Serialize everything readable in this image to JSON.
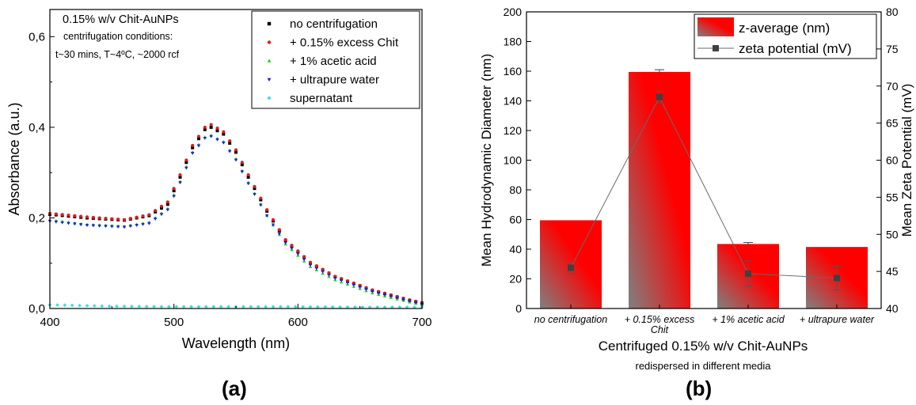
{
  "chart_data": [
    {
      "type": "scatter",
      "panel_label": "(a)",
      "xlabel": "Wavelength (nm)",
      "ylabel": "Absorbance (a.u.)",
      "xlim": [
        400,
        700
      ],
      "ylim": [
        0,
        0.66
      ],
      "x_ticks": [
        400,
        500,
        600,
        700
      ],
      "y_ticks": [
        0.0,
        0.2,
        0.4,
        0.6
      ],
      "y_tick_labels": [
        "0,0",
        "0,2",
        "0,4",
        "0,6"
      ],
      "grid": false,
      "legend_position": "top-right",
      "annotation": [
        "0.15% w/v Chit-AuNPs",
        "centrifugation conditions:",
        "t~30 mins, T~4ºC, ~2000 rcf"
      ],
      "series": [
        {
          "name": "no centrifugation",
          "color": "#000000",
          "marker": "square",
          "points": [
            [
              400,
              0.208
            ],
            [
              430,
              0.2
            ],
            [
              460,
              0.195
            ],
            [
              480,
              0.205
            ],
            [
              495,
              0.23
            ],
            [
              505,
              0.29
            ],
            [
              515,
              0.355
            ],
            [
              525,
              0.395
            ],
            [
              530,
              0.4
            ],
            [
              540,
              0.385
            ],
            [
              550,
              0.345
            ],
            [
              560,
              0.29
            ],
            [
              575,
              0.215
            ],
            [
              590,
              0.15
            ],
            [
              610,
              0.1
            ],
            [
              630,
              0.07
            ],
            [
              660,
              0.04
            ],
            [
              690,
              0.018
            ],
            [
              700,
              0.012
            ]
          ]
        },
        {
          "name": "+ 0.15% excess Chit",
          "color": "#e8191c",
          "marker": "circle",
          "points": [
            [
              400,
              0.21
            ],
            [
              430,
              0.202
            ],
            [
              460,
              0.196
            ],
            [
              480,
              0.207
            ],
            [
              495,
              0.235
            ],
            [
              505,
              0.295
            ],
            [
              515,
              0.36
            ],
            [
              525,
              0.4
            ],
            [
              530,
              0.406
            ],
            [
              540,
              0.39
            ],
            [
              550,
              0.35
            ],
            [
              560,
              0.295
            ],
            [
              575,
              0.218
            ],
            [
              590,
              0.152
            ],
            [
              610,
              0.102
            ],
            [
              630,
              0.071
            ],
            [
              660,
              0.041
            ],
            [
              690,
              0.019
            ],
            [
              700,
              0.013
            ]
          ]
        },
        {
          "name": "+ 1% acetic acid",
          "color": "#16d12a",
          "marker": "triangle-up",
          "points": [
            [
              400,
              0.195
            ],
            [
              430,
              0.185
            ],
            [
              460,
              0.181
            ],
            [
              480,
              0.19
            ],
            [
              495,
              0.22
            ],
            [
              505,
              0.28
            ],
            [
              515,
              0.345
            ],
            [
              525,
              0.378
            ],
            [
              530,
              0.382
            ],
            [
              540,
              0.368
            ],
            [
              550,
              0.33
            ],
            [
              560,
              0.278
            ],
            [
              575,
              0.205
            ],
            [
              590,
              0.142
            ],
            [
              610,
              0.092
            ],
            [
              630,
              0.063
            ],
            [
              660,
              0.034
            ],
            [
              690,
              0.014
            ],
            [
              700,
              0.008
            ]
          ]
        },
        {
          "name": "+ ultrapure water",
          "color": "#1c24d4",
          "marker": "triangle-down",
          "points": [
            [
              400,
              0.193
            ],
            [
              430,
              0.184
            ],
            [
              460,
              0.18
            ],
            [
              480,
              0.188
            ],
            [
              495,
              0.218
            ],
            [
              505,
              0.278
            ],
            [
              515,
              0.343
            ],
            [
              525,
              0.376
            ],
            [
              530,
              0.38
            ],
            [
              540,
              0.366
            ],
            [
              550,
              0.328
            ],
            [
              560,
              0.276
            ],
            [
              575,
              0.205
            ],
            [
              590,
              0.145
            ],
            [
              610,
              0.096
            ],
            [
              630,
              0.067
            ],
            [
              660,
              0.038
            ],
            [
              690,
              0.017
            ],
            [
              700,
              0.01
            ]
          ]
        },
        {
          "name": "supernatant",
          "color": "#33e4e4",
          "marker": "diamond",
          "points": [
            [
              400,
              0.008
            ],
            [
              450,
              0.005
            ],
            [
              500,
              0.004
            ],
            [
              550,
              0.004
            ],
            [
              600,
              0.004
            ],
            [
              650,
              0.003
            ],
            [
              700,
              0.003
            ]
          ]
        }
      ]
    },
    {
      "type": "bar",
      "panel_label": "(b)",
      "xlabel": "Centrifuged 0.15% w/v Chit-AuNPs",
      "xlabel_sub": "redispersed in different media",
      "ylabel": "Mean Hydrodynamic Diameter (nm)",
      "y2label": "Mean Zeta Potential (mV)",
      "ylim": [
        0,
        200
      ],
      "y2lim": [
        40,
        80
      ],
      "y_ticks": [
        0,
        20,
        40,
        60,
        80,
        100,
        120,
        140,
        160,
        180,
        200
      ],
      "y2_ticks": [
        40,
        45,
        50,
        55,
        60,
        65,
        70,
        75,
        80
      ],
      "categories": [
        "no centrifugation",
        "+ 0.15% excess Chit",
        "+ 1% acetic acid",
        "+ ultrapure water"
      ],
      "grid": false,
      "legend_position": "top-right",
      "series": [
        {
          "name": "z-average (nm)",
          "axis": "left",
          "kind": "bar",
          "values": [
            59.5,
            159.5,
            43.5,
            41.5
          ],
          "errors": [
            0,
            1.5,
            1.0,
            0
          ],
          "color_top": "#ff0000",
          "color_bottom": "#808080"
        },
        {
          "name": "zeta potential (mV)",
          "axis": "right",
          "kind": "line",
          "values": [
            45.5,
            68.5,
            44.7,
            44.1
          ],
          "errors": [
            0.8,
            0.8,
            1.7,
            1.6
          ],
          "color": "#404040"
        }
      ]
    }
  ]
}
